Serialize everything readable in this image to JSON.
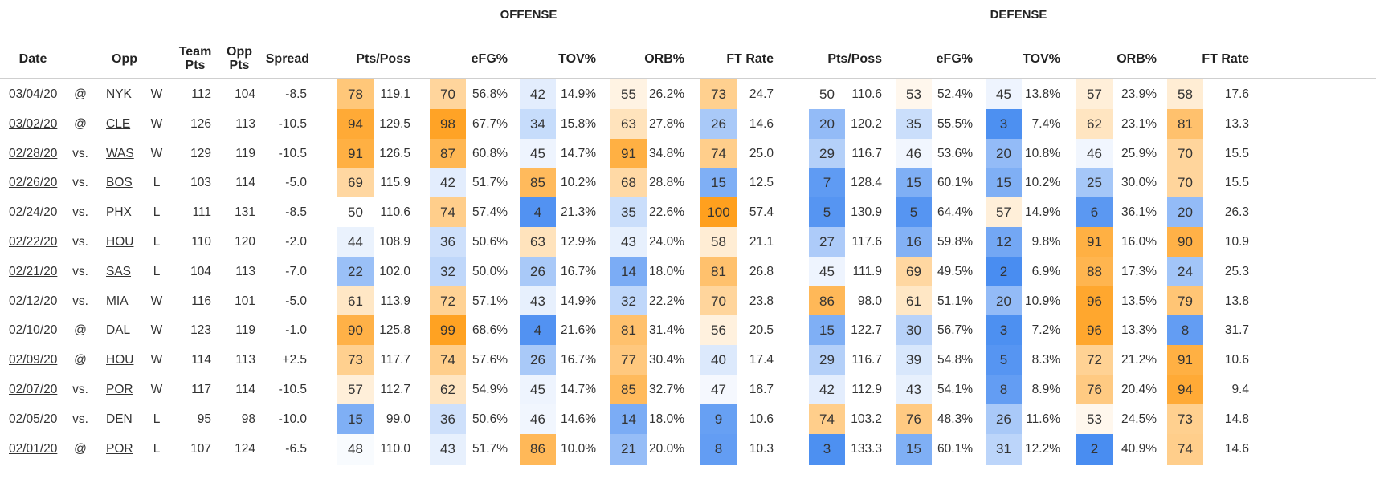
{
  "groups": {
    "offense": "OFFENSE",
    "defense": "DEFENSE"
  },
  "headers": {
    "date": "Date",
    "opp": "Opp",
    "team_pts": "Team\nPts",
    "opp_pts": "Opp\nPts",
    "spread": "Spread",
    "off_pts_poss": "Pts/Poss",
    "off_efg": "eFG%",
    "off_tov": "TOV%",
    "off_orb": "ORB%",
    "off_ft_rate": "FT Rate",
    "def_pts_poss": "Pts/Poss",
    "def_efg": "eFG%",
    "def_tov": "TOV%",
    "def_orb": "ORB%",
    "def_ft_rate": "FT Rate"
  },
  "metric_order": [
    "off_pts_poss",
    "off_efg",
    "off_tov",
    "off_orb",
    "off_ft_rate",
    "def_pts_poss",
    "def_efg",
    "def_tov",
    "def_orb",
    "def_ft_rate"
  ],
  "colors": {
    "low": "#3e86f0",
    "mid": "#ffffff",
    "high": "#ffa01e"
  },
  "rows": [
    {
      "date": "03/04/20",
      "ha": "@",
      "opp": "NYK",
      "result": "W",
      "team_pts": "112",
      "opp_pts": "104",
      "spread": "-8.5",
      "metrics": {
        "off_pts_poss": {
          "pct": "78",
          "val": "119.1"
        },
        "off_efg": {
          "pct": "70",
          "val": "56.8%"
        },
        "off_tov": {
          "pct": "42",
          "val": "14.9%"
        },
        "off_orb": {
          "pct": "55",
          "val": "26.2%"
        },
        "off_ft_rate": {
          "pct": "73",
          "val": "24.7"
        },
        "def_pts_poss": {
          "pct": "50",
          "val": "110.6"
        },
        "def_efg": {
          "pct": "53",
          "val": "52.4%"
        },
        "def_tov": {
          "pct": "45",
          "val": "13.8%"
        },
        "def_orb": {
          "pct": "57",
          "val": "23.9%"
        },
        "def_ft_rate": {
          "pct": "58",
          "val": "17.6"
        }
      }
    },
    {
      "date": "03/02/20",
      "ha": "@",
      "opp": "CLE",
      "result": "W",
      "team_pts": "126",
      "opp_pts": "113",
      "spread": "-10.5",
      "metrics": {
        "off_pts_poss": {
          "pct": "94",
          "val": "129.5"
        },
        "off_efg": {
          "pct": "98",
          "val": "67.7%"
        },
        "off_tov": {
          "pct": "34",
          "val": "15.8%"
        },
        "off_orb": {
          "pct": "63",
          "val": "27.8%"
        },
        "off_ft_rate": {
          "pct": "26",
          "val": "14.6"
        },
        "def_pts_poss": {
          "pct": "20",
          "val": "120.2"
        },
        "def_efg": {
          "pct": "35",
          "val": "55.5%"
        },
        "def_tov": {
          "pct": "3",
          "val": "7.4%"
        },
        "def_orb": {
          "pct": "62",
          "val": "23.1%"
        },
        "def_ft_rate": {
          "pct": "81",
          "val": "13.3"
        }
      }
    },
    {
      "date": "02/28/20",
      "ha": "vs.",
      "opp": "WAS",
      "result": "W",
      "team_pts": "129",
      "opp_pts": "119",
      "spread": "-10.5",
      "metrics": {
        "off_pts_poss": {
          "pct": "91",
          "val": "126.5"
        },
        "off_efg": {
          "pct": "87",
          "val": "60.8%"
        },
        "off_tov": {
          "pct": "45",
          "val": "14.7%"
        },
        "off_orb": {
          "pct": "91",
          "val": "34.8%"
        },
        "off_ft_rate": {
          "pct": "74",
          "val": "25.0"
        },
        "def_pts_poss": {
          "pct": "29",
          "val": "116.7"
        },
        "def_efg": {
          "pct": "46",
          "val": "53.6%"
        },
        "def_tov": {
          "pct": "20",
          "val": "10.8%"
        },
        "def_orb": {
          "pct": "46",
          "val": "25.9%"
        },
        "def_ft_rate": {
          "pct": "70",
          "val": "15.5"
        }
      }
    },
    {
      "date": "02/26/20",
      "ha": "vs.",
      "opp": "BOS",
      "result": "L",
      "team_pts": "103",
      "opp_pts": "114",
      "spread": "-5.0",
      "metrics": {
        "off_pts_poss": {
          "pct": "69",
          "val": "115.9"
        },
        "off_efg": {
          "pct": "42",
          "val": "51.7%"
        },
        "off_tov": {
          "pct": "85",
          "val": "10.2%"
        },
        "off_orb": {
          "pct": "68",
          "val": "28.8%"
        },
        "off_ft_rate": {
          "pct": "15",
          "val": "12.5"
        },
        "def_pts_poss": {
          "pct": "7",
          "val": "128.4"
        },
        "def_efg": {
          "pct": "15",
          "val": "60.1%"
        },
        "def_tov": {
          "pct": "15",
          "val": "10.2%"
        },
        "def_orb": {
          "pct": "25",
          "val": "30.0%"
        },
        "def_ft_rate": {
          "pct": "70",
          "val": "15.5"
        }
      }
    },
    {
      "date": "02/24/20",
      "ha": "vs.",
      "opp": "PHX",
      "result": "L",
      "team_pts": "111",
      "opp_pts": "131",
      "spread": "-8.5",
      "metrics": {
        "off_pts_poss": {
          "pct": "50",
          "val": "110.6"
        },
        "off_efg": {
          "pct": "74",
          "val": "57.4%"
        },
        "off_tov": {
          "pct": "4",
          "val": "21.3%"
        },
        "off_orb": {
          "pct": "35",
          "val": "22.6%"
        },
        "off_ft_rate": {
          "pct": "100",
          "val": "57.4"
        },
        "def_pts_poss": {
          "pct": "5",
          "val": "130.9"
        },
        "def_efg": {
          "pct": "5",
          "val": "64.4%"
        },
        "def_tov": {
          "pct": "57",
          "val": "14.9%"
        },
        "def_orb": {
          "pct": "6",
          "val": "36.1%"
        },
        "def_ft_rate": {
          "pct": "20",
          "val": "26.3"
        }
      }
    },
    {
      "date": "02/22/20",
      "ha": "vs.",
      "opp": "HOU",
      "result": "L",
      "team_pts": "110",
      "opp_pts": "120",
      "spread": "-2.0",
      "metrics": {
        "off_pts_poss": {
          "pct": "44",
          "val": "108.9"
        },
        "off_efg": {
          "pct": "36",
          "val": "50.6%"
        },
        "off_tov": {
          "pct": "63",
          "val": "12.9%"
        },
        "off_orb": {
          "pct": "43",
          "val": "24.0%"
        },
        "off_ft_rate": {
          "pct": "58",
          "val": "21.1"
        },
        "def_pts_poss": {
          "pct": "27",
          "val": "117.6"
        },
        "def_efg": {
          "pct": "16",
          "val": "59.8%"
        },
        "def_tov": {
          "pct": "12",
          "val": "9.8%"
        },
        "def_orb": {
          "pct": "91",
          "val": "16.0%"
        },
        "def_ft_rate": {
          "pct": "90",
          "val": "10.9"
        }
      }
    },
    {
      "date": "02/21/20",
      "ha": "vs.",
      "opp": "SAS",
      "result": "L",
      "team_pts": "104",
      "opp_pts": "113",
      "spread": "-7.0",
      "metrics": {
        "off_pts_poss": {
          "pct": "22",
          "val": "102.0"
        },
        "off_efg": {
          "pct": "32",
          "val": "50.0%"
        },
        "off_tov": {
          "pct": "26",
          "val": "16.7%"
        },
        "off_orb": {
          "pct": "14",
          "val": "18.0%"
        },
        "off_ft_rate": {
          "pct": "81",
          "val": "26.8"
        },
        "def_pts_poss": {
          "pct": "45",
          "val": "111.9"
        },
        "def_efg": {
          "pct": "69",
          "val": "49.5%"
        },
        "def_tov": {
          "pct": "2",
          "val": "6.9%"
        },
        "def_orb": {
          "pct": "88",
          "val": "17.3%"
        },
        "def_ft_rate": {
          "pct": "24",
          "val": "25.3"
        }
      }
    },
    {
      "date": "02/12/20",
      "ha": "vs.",
      "opp": "MIA",
      "result": "W",
      "team_pts": "116",
      "opp_pts": "101",
      "spread": "-5.0",
      "metrics": {
        "off_pts_poss": {
          "pct": "61",
          "val": "113.9"
        },
        "off_efg": {
          "pct": "72",
          "val": "57.1%"
        },
        "off_tov": {
          "pct": "43",
          "val": "14.9%"
        },
        "off_orb": {
          "pct": "32",
          "val": "22.2%"
        },
        "off_ft_rate": {
          "pct": "70",
          "val": "23.8"
        },
        "def_pts_poss": {
          "pct": "86",
          "val": "98.0"
        },
        "def_efg": {
          "pct": "61",
          "val": "51.1%"
        },
        "def_tov": {
          "pct": "20",
          "val": "10.9%"
        },
        "def_orb": {
          "pct": "96",
          "val": "13.5%"
        },
        "def_ft_rate": {
          "pct": "79",
          "val": "13.8"
        }
      }
    },
    {
      "date": "02/10/20",
      "ha": "@",
      "opp": "DAL",
      "result": "W",
      "team_pts": "123",
      "opp_pts": "119",
      "spread": "-1.0",
      "metrics": {
        "off_pts_poss": {
          "pct": "90",
          "val": "125.8"
        },
        "off_efg": {
          "pct": "99",
          "val": "68.6%"
        },
        "off_tov": {
          "pct": "4",
          "val": "21.6%"
        },
        "off_orb": {
          "pct": "81",
          "val": "31.4%"
        },
        "off_ft_rate": {
          "pct": "56",
          "val": "20.5"
        },
        "def_pts_poss": {
          "pct": "15",
          "val": "122.7"
        },
        "def_efg": {
          "pct": "30",
          "val": "56.7%"
        },
        "def_tov": {
          "pct": "3",
          "val": "7.2%"
        },
        "def_orb": {
          "pct": "96",
          "val": "13.3%"
        },
        "def_ft_rate": {
          "pct": "8",
          "val": "31.7"
        }
      }
    },
    {
      "date": "02/09/20",
      "ha": "@",
      "opp": "HOU",
      "result": "W",
      "team_pts": "114",
      "opp_pts": "113",
      "spread": "+2.5",
      "metrics": {
        "off_pts_poss": {
          "pct": "73",
          "val": "117.7"
        },
        "off_efg": {
          "pct": "74",
          "val": "57.6%"
        },
        "off_tov": {
          "pct": "26",
          "val": "16.7%"
        },
        "off_orb": {
          "pct": "77",
          "val": "30.4%"
        },
        "off_ft_rate": {
          "pct": "40",
          "val": "17.4"
        },
        "def_pts_poss": {
          "pct": "29",
          "val": "116.7"
        },
        "def_efg": {
          "pct": "39",
          "val": "54.8%"
        },
        "def_tov": {
          "pct": "5",
          "val": "8.3%"
        },
        "def_orb": {
          "pct": "72",
          "val": "21.2%"
        },
        "def_ft_rate": {
          "pct": "91",
          "val": "10.6"
        }
      }
    },
    {
      "date": "02/07/20",
      "ha": "vs.",
      "opp": "POR",
      "result": "W",
      "team_pts": "117",
      "opp_pts": "114",
      "spread": "-10.5",
      "metrics": {
        "off_pts_poss": {
          "pct": "57",
          "val": "112.7"
        },
        "off_efg": {
          "pct": "62",
          "val": "54.9%"
        },
        "off_tov": {
          "pct": "45",
          "val": "14.7%"
        },
        "off_orb": {
          "pct": "85",
          "val": "32.7%"
        },
        "off_ft_rate": {
          "pct": "47",
          "val": "18.7"
        },
        "def_pts_poss": {
          "pct": "42",
          "val": "112.9"
        },
        "def_efg": {
          "pct": "43",
          "val": "54.1%"
        },
        "def_tov": {
          "pct": "8",
          "val": "8.9%"
        },
        "def_orb": {
          "pct": "76",
          "val": "20.4%"
        },
        "def_ft_rate": {
          "pct": "94",
          "val": "9.4"
        }
      }
    },
    {
      "date": "02/05/20",
      "ha": "vs.",
      "opp": "DEN",
      "result": "L",
      "team_pts": "95",
      "opp_pts": "98",
      "spread": "-10.0",
      "metrics": {
        "off_pts_poss": {
          "pct": "15",
          "val": "99.0"
        },
        "off_efg": {
          "pct": "36",
          "val": "50.6%"
        },
        "off_tov": {
          "pct": "46",
          "val": "14.6%"
        },
        "off_orb": {
          "pct": "14",
          "val": "18.0%"
        },
        "off_ft_rate": {
          "pct": "9",
          "val": "10.6"
        },
        "def_pts_poss": {
          "pct": "74",
          "val": "103.2"
        },
        "def_efg": {
          "pct": "76",
          "val": "48.3%"
        },
        "def_tov": {
          "pct": "26",
          "val": "11.6%"
        },
        "def_orb": {
          "pct": "53",
          "val": "24.5%"
        },
        "def_ft_rate": {
          "pct": "73",
          "val": "14.8"
        }
      }
    },
    {
      "date": "02/01/20",
      "ha": "@",
      "opp": "POR",
      "result": "L",
      "team_pts": "107",
      "opp_pts": "124",
      "spread": "-6.5",
      "metrics": {
        "off_pts_poss": {
          "pct": "48",
          "val": "110.0"
        },
        "off_efg": {
          "pct": "43",
          "val": "51.7%"
        },
        "off_tov": {
          "pct": "86",
          "val": "10.0%"
        },
        "off_orb": {
          "pct": "21",
          "val": "20.0%"
        },
        "off_ft_rate": {
          "pct": "8",
          "val": "10.3"
        },
        "def_pts_poss": {
          "pct": "3",
          "val": "133.3"
        },
        "def_efg": {
          "pct": "15",
          "val": "60.1%"
        },
        "def_tov": {
          "pct": "31",
          "val": "12.2%"
        },
        "def_orb": {
          "pct": "2",
          "val": "40.9%"
        },
        "def_ft_rate": {
          "pct": "74",
          "val": "14.6"
        }
      }
    }
  ]
}
